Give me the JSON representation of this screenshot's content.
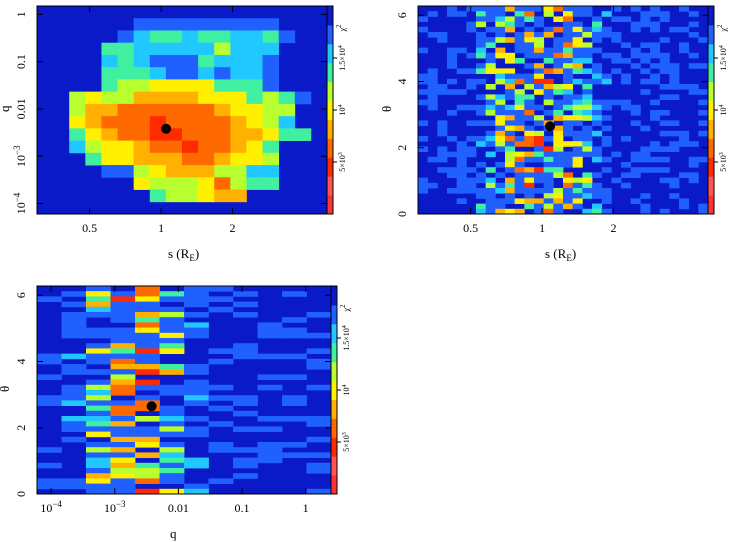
{
  "chart_data": [
    {
      "type": "heatmap",
      "panel": "s-q",
      "xlabel": "s (R",
      "xlabel_sub": "E",
      "xlabel_close": ")",
      "ylabel": "q",
      "x_scale": "log",
      "y_scale": "log",
      "xlim": [
        0.3,
        5.0
      ],
      "ylim": [
        6e-05,
        1.5
      ],
      "x_ticks": [
        {
          "value": 0.5,
          "label": "0.5"
        },
        {
          "value": 1,
          "label": "1"
        },
        {
          "value": 2,
          "label": "2"
        }
      ],
      "y_ticks": [
        {
          "value": 0.0001,
          "label": "10",
          "exp": "−4"
        },
        {
          "value": 0.001,
          "label": "10",
          "exp": "−3"
        },
        {
          "value": 0.01,
          "label": "0.01",
          "exp": ""
        },
        {
          "value": 0.1,
          "label": "0.1",
          "exp": ""
        },
        {
          "value": 1,
          "label": "1",
          "exp": ""
        }
      ],
      "best_fit": {
        "x": 1.05,
        "y": 0.0038
      },
      "nx": 18,
      "ny": 17,
      "grid": [
        "000000000000000000",
        "000000111111111000",
        "000001233233223100",
        "000033222224222000",
        "000023211132221000",
        "000033321121221000",
        "000034455553331000",
        "004544666655534310",
        "004667777776554400",
        "005677787777654200",
        "003567788777665330",
        "002455677877653000",
        "000355666776554000",
        "000011456664422000",
        "000000544457433000",
        "000000034456600000",
        "000000000000000000"
      ]
    },
    {
      "type": "heatmap",
      "panel": "s-theta",
      "xlabel": "s (R",
      "xlabel_sub": "E",
      "xlabel_close": ")",
      "ylabel": "θ",
      "x_scale": "log",
      "y_scale": "linear",
      "xlim": [
        0.3,
        5.0
      ],
      "ylim": [
        0,
        6.28
      ],
      "x_ticks": [
        {
          "value": 0.5,
          "label": "0.5"
        },
        {
          "value": 1,
          "label": "1"
        },
        {
          "value": 2,
          "label": "2"
        }
      ],
      "y_ticks": [
        {
          "value": 0,
          "label": "0"
        },
        {
          "value": 2,
          "label": "2"
        },
        {
          "value": 4,
          "label": "4"
        },
        {
          "value": 6,
          "label": "6"
        }
      ],
      "best_fit": {
        "x": 1.08,
        "y": 2.65
      },
      "nx": 30,
      "ny": 40,
      "seed": 7
    },
    {
      "type": "heatmap",
      "panel": "q-theta",
      "xlabel": "q",
      "ylabel": "θ",
      "x_scale": "log",
      "y_scale": "linear",
      "xlim": [
        6e-05,
        2.5
      ],
      "ylim": [
        0,
        6.28
      ],
      "x_ticks": [
        {
          "value": 0.0001,
          "label": "10",
          "exp": "−4"
        },
        {
          "value": 0.001,
          "label": "10",
          "exp": "−3"
        },
        {
          "value": 0.01,
          "label": "0.01",
          "exp": ""
        },
        {
          "value": 0.1,
          "label": "0.1",
          "exp": ""
        },
        {
          "value": 1,
          "label": "1",
          "exp": ""
        }
      ],
      "y_ticks": [
        {
          "value": 0,
          "label": "0"
        },
        {
          "value": 2,
          "label": "2"
        },
        {
          "value": 4,
          "label": "4"
        },
        {
          "value": 6,
          "label": "6"
        }
      ],
      "best_fit": {
        "x": 0.0038,
        "y": 2.65
      },
      "nx": 12,
      "ny": 40,
      "seed": 19
    }
  ],
  "colorbar": {
    "label": "χ",
    "label_exp": "2",
    "ticks": [
      {
        "value": 5000,
        "label": "5×10",
        "exp": "3"
      },
      {
        "value": 10000,
        "label": "10",
        "exp": "4"
      },
      {
        "value": 15000,
        "label": "1.5×10",
        "exp": "4"
      }
    ],
    "range": [
      0,
      20000
    ],
    "palette": [
      "#ff3333",
      "#ff5555",
      "#ff2b00",
      "#ff6a00",
      "#ffb000",
      "#fff000",
      "#b8ff30",
      "#40f0a0",
      "#20c8ff",
      "#2060ff",
      "#0a1ac8"
    ]
  }
}
